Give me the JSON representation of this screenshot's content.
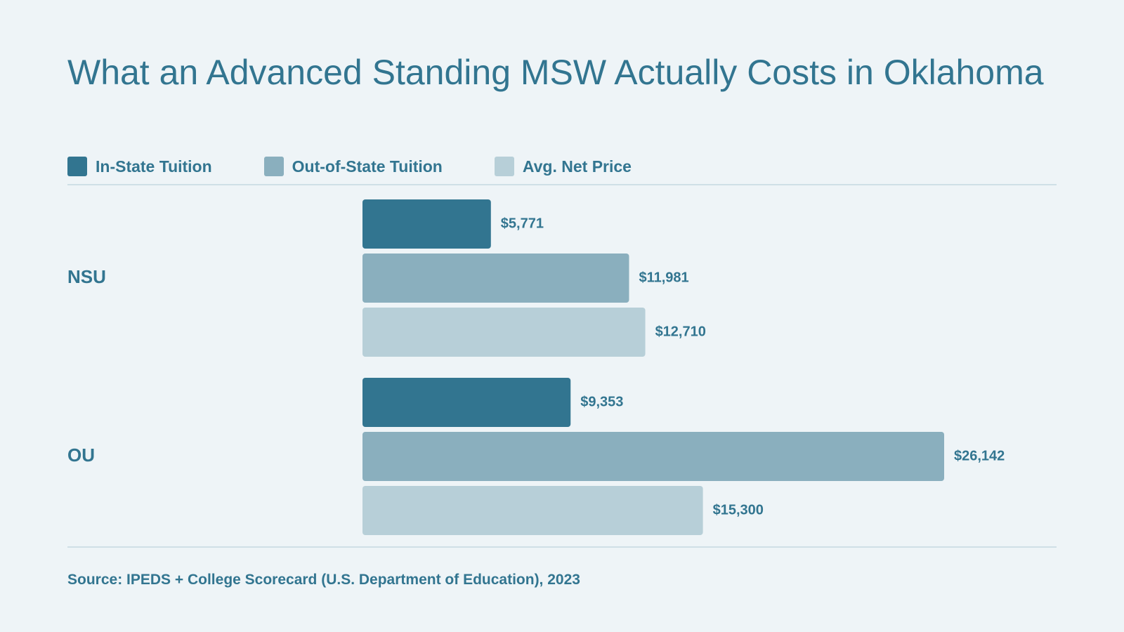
{
  "chart_data": {
    "type": "bar",
    "orientation": "horizontal",
    "title": "What an Advanced Standing MSW Actually Costs in Oklahoma",
    "categories": [
      "NSU",
      "OU"
    ],
    "series": [
      {
        "name": "In-State Tuition",
        "color": "#327590",
        "values": [
          5771,
          9353
        ],
        "labels": [
          "$5,771",
          "$9,353"
        ]
      },
      {
        "name": "Out-of-State Tuition",
        "color": "#8aafbe",
        "values": [
          11981,
          26142
        ],
        "labels": [
          "$11,981",
          "$26,142"
        ]
      },
      {
        "name": "Avg. Net Price",
        "color": "#b7cfd8",
        "values": [
          12710,
          15300
        ],
        "labels": [
          "$12,710",
          "$15,300"
        ]
      }
    ],
    "xlim": [
      0,
      26142
    ],
    "grid": false,
    "legend_position": "top-left",
    "source": "Source: IPEDS + College Scorecard (U.S. Department of Education), 2023"
  }
}
